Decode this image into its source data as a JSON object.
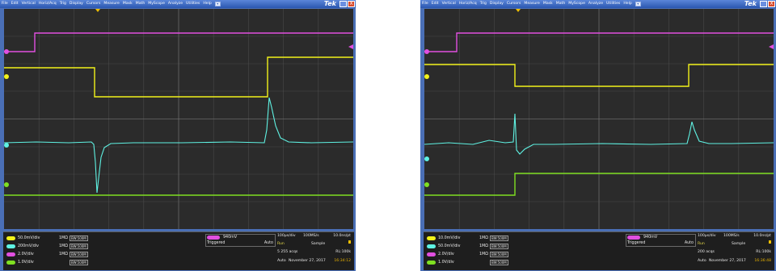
{
  "menu": [
    "File",
    "Edit",
    "Vertical",
    "Horiz/Acq",
    "Trig",
    "Display",
    "Cursors",
    "Measure",
    "Mask",
    "Math",
    "MyScope",
    "Analyze",
    "Utilities",
    "Help"
  ],
  "brand": "Tek",
  "close_glyph": "X",
  "colors": {
    "ch1": "#f2f21a",
    "ch2": "#5ff2e3",
    "ch3": "#e14fe0",
    "ch4": "#7fe021",
    "menubar": "#2b57b0",
    "graticule": "#2b2b2b"
  },
  "scopes": [
    {
      "channels": [
        {
          "label": "50.0mV/div",
          "impedance": "1MΩ",
          "bw": "BW:500M"
        },
        {
          "label": "200mV/div",
          "impedance": "1MΩ",
          "bw": "BW:500M"
        },
        {
          "label": "2.0V/div",
          "impedance": "1MΩ",
          "bw": "BW:500M"
        },
        {
          "label": "1.0V/div",
          "impedance": "",
          "bw": "BW:500M"
        }
      ],
      "trigger": {
        "level": "940mV",
        "state": "Triggered",
        "mode": "Auto"
      },
      "acq": {
        "timebase": "100µs/div",
        "rate": "100MS/s",
        "resolution": "10.0ns/pt",
        "state": "Run",
        "mode": "Sample",
        "count": "5 255 acqs",
        "record": "RL:100k",
        "trigger_mode": "Auto",
        "date": "November 27, 2017",
        "time": "16:34:12"
      }
    },
    {
      "channels": [
        {
          "label": "10.0mV/div",
          "impedance": "1MΩ",
          "bw": "BW:500M"
        },
        {
          "label": "50.0mV/div",
          "impedance": "1MΩ",
          "bw": "BW:500M"
        },
        {
          "label": "2.0V/div",
          "impedance": "1MΩ",
          "bw": "BW:500M"
        },
        {
          "label": "1.0V/div",
          "impedance": "",
          "bw": "BW:500M"
        }
      ],
      "trigger": {
        "level": "940mV",
        "state": "Triggered",
        "mode": "Auto"
      },
      "acq": {
        "timebase": "100µs/div",
        "rate": "100MS/s",
        "resolution": "10.0ns/pt",
        "state": "Run",
        "mode": "Sample",
        "count": "200 acqs",
        "record": "RL:100k",
        "trigger_mode": "Auto",
        "date": "November 27, 2017",
        "time": "16:36:48"
      }
    }
  ]
}
